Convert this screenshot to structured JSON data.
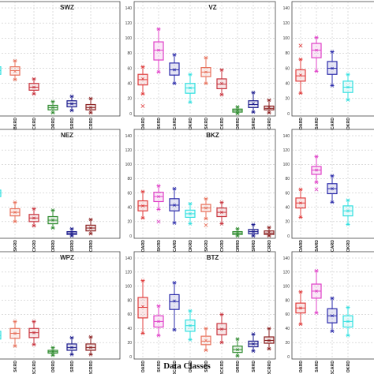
{
  "chart_data": {
    "type": "box",
    "xlabel": "Data Classes",
    "panels": [
      {
        "title": "SWZ",
        "ylim": [
          0,
          140
        ],
        "yticks": [],
        "boxes": [
          {
            "category": "",
            "color": "#33e0e0",
            "q1": 52,
            "median": 57,
            "q3": 62,
            "whisker_low": 46,
            "whisker_high": 67,
            "mean": 56
          },
          {
            "category": "BKRD",
            "color": "#e8705a",
            "q1": 51,
            "median": 57,
            "q3": 62,
            "whisker_low": 45,
            "whisker_high": 70,
            "mean": 56
          },
          {
            "category": "BCKRD",
            "color": "#c8323c",
            "q1": 31,
            "median": 35,
            "q3": 40,
            "whisker_low": 26,
            "whisker_high": 46,
            "mean": 35
          },
          {
            "category": "ORRD",
            "color": "#2e8b2e",
            "q1": 5,
            "median": 8,
            "q3": 11,
            "whisker_low": 1,
            "whisker_high": 16,
            "mean": 8
          },
          {
            "category": "SRRD",
            "color": "#1a1a8c",
            "q1": 9,
            "median": 13,
            "q3": 17,
            "whisker_low": 4,
            "whisker_high": 23,
            "mean": 13
          },
          {
            "category": "BCRRD",
            "color": "#8b2020",
            "q1": 5,
            "median": 8,
            "q3": 12,
            "whisker_low": 1,
            "whisker_high": 20,
            "mean": 8
          }
        ]
      },
      {
        "title": "VZ",
        "ylim": [
          0,
          140
        ],
        "yticks": [
          "0",
          "20",
          "40",
          "60",
          "80",
          "100",
          "120",
          "140"
        ],
        "boxes": [
          {
            "category": "OARD",
            "color": "#e03c3c",
            "q1": 38,
            "median": 45,
            "q3": 52,
            "whisker_low": 26,
            "whisker_high": 62,
            "mean": 46,
            "outliers": [
              10
            ]
          },
          {
            "category": "SKRD",
            "color": "#e040c8",
            "q1": 71,
            "median": 84,
            "q3": 95,
            "whisker_low": 55,
            "whisker_high": 112,
            "mean": 84
          },
          {
            "category": "BCARD",
            "color": "#2a2aaa",
            "q1": 51,
            "median": 58,
            "q3": 67,
            "whisker_low": 40,
            "whisker_high": 78,
            "mean": 58
          },
          {
            "category": "OKRD",
            "color": "#33e0e0",
            "q1": 27,
            "median": 34,
            "q3": 40,
            "whisker_low": 15,
            "whisker_high": 52,
            "mean": 34
          },
          {
            "category": "SKRD",
            "color": "#e8705a",
            "q1": 49,
            "median": 55,
            "q3": 61,
            "whisker_low": 40,
            "whisker_high": 74,
            "mean": 55
          },
          {
            "category": "BCKRD",
            "color": "#c8323c",
            "q1": 33,
            "median": 39,
            "q3": 46,
            "whisker_low": 25,
            "whisker_high": 58,
            "mean": 40
          },
          {
            "category": "ORRD",
            "color": "#2e8b2e",
            "q1": 2,
            "median": 4,
            "q3": 6,
            "whisker_low": 0,
            "whisker_high": 9,
            "mean": 4
          },
          {
            "category": "SRRD",
            "color": "#1a1a8c",
            "q1": 8,
            "median": 12,
            "q3": 17,
            "whisker_low": 2,
            "whisker_high": 28,
            "mean": 13
          },
          {
            "category": "BCRRD",
            "color": "#8b2020",
            "q1": 5,
            "median": 7,
            "q3": 10,
            "whisker_low": 1,
            "whisker_high": 18,
            "mean": 8
          }
        ]
      },
      {
        "title": "",
        "ylim": [
          0,
          140
        ],
        "yticks": [
          "0",
          "20",
          "40",
          "60",
          "80",
          "100",
          "120",
          "140"
        ],
        "boxes": [
          {
            "category": "OARD",
            "color": "#e03c3c",
            "q1": 43,
            "median": 50,
            "q3": 58,
            "whisker_low": 27,
            "whisker_high": 72,
            "mean": 51,
            "outliers": [
              90
            ]
          },
          {
            "category": "SARD",
            "color": "#e040c8",
            "q1": 74,
            "median": 84,
            "q3": 93,
            "whisker_low": 56,
            "whisker_high": 101,
            "mean": 84
          },
          {
            "category": "BCARD",
            "color": "#2a2aaa",
            "q1": 52,
            "median": 60,
            "q3": 69,
            "whisker_low": 37,
            "whisker_high": 82,
            "mean": 60
          },
          {
            "category": "OKRD",
            "color": "#33e0e0",
            "q1": 28,
            "median": 35,
            "q3": 43,
            "whisker_low": 18,
            "whisker_high": 52,
            "mean": 35
          }
        ]
      },
      {
        "title": "NEZ",
        "ylim": [
          0,
          140
        ],
        "yticks": [],
        "boxes": [
          {
            "category": "",
            "color": "#33e0e0",
            "q1": 55,
            "median": 60,
            "q3": 64,
            "whisker_low": 48,
            "whisker_high": 68,
            "mean": 60
          },
          {
            "category": "SKRD",
            "color": "#e8705a",
            "q1": 28,
            "median": 33,
            "q3": 38,
            "whisker_low": 20,
            "whisker_high": 47,
            "mean": 33
          },
          {
            "category": "BCKRD",
            "color": "#c8323c",
            "q1": 20,
            "median": 25,
            "q3": 30,
            "whisker_low": 14,
            "whisker_high": 38,
            "mean": 25
          },
          {
            "category": "ORRD",
            "color": "#2e8b2e",
            "q1": 17,
            "median": 22,
            "q3": 27,
            "whisker_low": 11,
            "whisker_high": 36,
            "mean": 22
          },
          {
            "category": "SRRD",
            "color": "#1a1a8c",
            "q1": 2,
            "median": 4,
            "q3": 6,
            "whisker_low": 0,
            "whisker_high": 10,
            "mean": 4
          },
          {
            "category": "BCRRD",
            "color": "#8b2020",
            "q1": 7,
            "median": 11,
            "q3": 15,
            "whisker_low": 3,
            "whisker_high": 23,
            "mean": 11
          }
        ]
      },
      {
        "title": "BKZ",
        "ylim": [
          0,
          140
        ],
        "yticks": [
          "0",
          "20",
          "40",
          "60",
          "80",
          "100",
          "120",
          "140"
        ],
        "boxes": [
          {
            "category": "OARD",
            "color": "#e03c3c",
            "q1": 35,
            "median": 42,
            "q3": 49,
            "whisker_low": 25,
            "whisker_high": 62,
            "mean": 42
          },
          {
            "category": "SKRD",
            "color": "#e040c8",
            "q1": 48,
            "median": 55,
            "q3": 61,
            "whisker_low": 37,
            "whisker_high": 70,
            "mean": 55,
            "outliers": [
              20
            ]
          },
          {
            "category": "BCARD",
            "color": "#2a2aaa",
            "q1": 35,
            "median": 43,
            "q3": 52,
            "whisker_low": 18,
            "whisker_high": 66,
            "mean": 43
          },
          {
            "category": "OKRD",
            "color": "#33e0e0",
            "q1": 26,
            "median": 31,
            "q3": 36,
            "whisker_low": 17,
            "whisker_high": 45,
            "mean": 31
          },
          {
            "category": "SKRD",
            "color": "#e8705a",
            "q1": 34,
            "median": 39,
            "q3": 44,
            "whisker_low": 24,
            "whisker_high": 52,
            "mean": 39,
            "outliers": [
              15
            ]
          },
          {
            "category": "BCKRD",
            "color": "#c8323c",
            "q1": 27,
            "median": 33,
            "q3": 39,
            "whisker_low": 17,
            "whisker_high": 47,
            "mean": 33
          },
          {
            "category": "ORRD",
            "color": "#2e8b2e",
            "q1": 2,
            "median": 4,
            "q3": 6,
            "whisker_low": 0,
            "whisker_high": 10,
            "mean": 4
          },
          {
            "category": "SRRD",
            "color": "#1a1a8c",
            "q1": 3,
            "median": 6,
            "q3": 9,
            "whisker_low": 0,
            "whisker_high": 16,
            "mean": 6
          },
          {
            "category": "BCRRD",
            "color": "#8b2020",
            "q1": 2,
            "median": 4,
            "q3": 7,
            "whisker_low": 0,
            "whisker_high": 12,
            "mean": 5
          }
        ]
      },
      {
        "title": "",
        "ylim": [
          0,
          140
        ],
        "yticks": [
          "0",
          "20",
          "40",
          "60",
          "80",
          "100",
          "120",
          "140"
        ],
        "boxes": [
          {
            "category": "OARD",
            "color": "#e03c3c",
            "q1": 39,
            "median": 46,
            "q3": 53,
            "whisker_low": 26,
            "whisker_high": 65,
            "mean": 46
          },
          {
            "category": "SARD",
            "color": "#e040c8",
            "q1": 86,
            "median": 92,
            "q3": 97,
            "whisker_low": 75,
            "whisker_high": 111,
            "mean": 92,
            "outliers": [
              65
            ]
          },
          {
            "category": "BCARD",
            "color": "#2a2aaa",
            "q1": 59,
            "median": 66,
            "q3": 73,
            "whisker_low": 47,
            "whisker_high": 84,
            "mean": 66
          },
          {
            "category": "OKRD",
            "color": "#33e0e0",
            "q1": 28,
            "median": 35,
            "q3": 42,
            "whisker_low": 16,
            "whisker_high": 50,
            "mean": 35
          }
        ]
      },
      {
        "title": "WPZ",
        "ylim": [
          0,
          140
        ],
        "yticks": [],
        "boxes": [
          {
            "category": "",
            "color": "#33e0e0",
            "q1": 25,
            "median": 30,
            "q3": 36,
            "whisker_low": 19,
            "whisker_high": 42,
            "mean": 30
          },
          {
            "category": "SKRD",
            "color": "#e8705a",
            "q1": 26,
            "median": 33,
            "q3": 40,
            "whisker_low": 15,
            "whisker_high": 50,
            "mean": 33
          },
          {
            "category": "BCKRD",
            "color": "#c8323c",
            "q1": 27,
            "median": 34,
            "q3": 40,
            "whisker_low": 17,
            "whisker_high": 50,
            "mean": 34
          },
          {
            "category": "ORRD",
            "color": "#2e8b2e",
            "q1": 5,
            "median": 7,
            "q3": 9,
            "whisker_low": 2,
            "whisker_high": 13,
            "mean": 7
          },
          {
            "category": "SRRD",
            "color": "#1a1a8c",
            "q1": 9,
            "median": 13,
            "q3": 18,
            "whisker_low": 3,
            "whisker_high": 27,
            "mean": 13
          },
          {
            "category": "BCRRD",
            "color": "#8b2020",
            "q1": 9,
            "median": 13,
            "q3": 18,
            "whisker_low": 3,
            "whisker_high": 28,
            "mean": 13
          }
        ]
      },
      {
        "title": "BTZ",
        "ylim": [
          0,
          140
        ],
        "yticks": [
          "0",
          "20",
          "40",
          "60",
          "80",
          "100",
          "120",
          "140"
        ],
        "boxes": [
          {
            "category": "OARD",
            "color": "#e03c3c",
            "q1": 55,
            "median": 70,
            "q3": 84,
            "whisker_low": 33,
            "whisker_high": 108,
            "mean": 71
          },
          {
            "category": "SKRD",
            "color": "#e040c8",
            "q1": 42,
            "median": 50,
            "q3": 58,
            "whisker_low": 30,
            "whisker_high": 72,
            "mean": 50
          },
          {
            "category": "BCARD",
            "color": "#2a2aaa",
            "q1": 67,
            "median": 78,
            "q3": 88,
            "whisker_low": 38,
            "whisker_high": 105,
            "mean": 79
          },
          {
            "category": "OKRD",
            "color": "#33e0e0",
            "q1": 36,
            "median": 44,
            "q3": 52,
            "whisker_low": 24,
            "whisker_high": 65,
            "mean": 44
          },
          {
            "category": "SKRD",
            "color": "#e8705a",
            "q1": 17,
            "median": 22,
            "q3": 29,
            "whisker_low": 9,
            "whisker_high": 40,
            "mean": 23
          },
          {
            "category": "BCKRD",
            "color": "#c8323c",
            "q1": 31,
            "median": 39,
            "q3": 47,
            "whisker_low": 20,
            "whisker_high": 60,
            "mean": 39
          },
          {
            "category": "ORRD",
            "color": "#2e8b2e",
            "q1": 6,
            "median": 10,
            "q3": 15,
            "whisker_low": 1,
            "whisker_high": 25,
            "mean": 10
          },
          {
            "category": "SRRD",
            "color": "#1a1a8c",
            "q1": 14,
            "median": 18,
            "q3": 22,
            "whisker_low": 8,
            "whisker_high": 32,
            "mean": 18
          },
          {
            "category": "BCRRD",
            "color": "#8b2020",
            "q1": 19,
            "median": 23,
            "q3": 28,
            "whisker_low": 11,
            "whisker_high": 40,
            "mean": 23
          }
        ]
      },
      {
        "title": "",
        "ylim": [
          0,
          140
        ],
        "yticks": [
          "0",
          "20",
          "40",
          "60",
          "80",
          "100",
          "120",
          "140"
        ],
        "boxes": [
          {
            "category": "OARD",
            "color": "#e03c3c",
            "q1": 62,
            "median": 69,
            "q3": 76,
            "whisker_low": 46,
            "whisker_high": 92,
            "mean": 69
          },
          {
            "category": "SARD",
            "color": "#e040c8",
            "q1": 83,
            "median": 93,
            "q3": 103,
            "whisker_low": 62,
            "whisker_high": 122,
            "mean": 93
          },
          {
            "category": "BCARD",
            "color": "#2a2aaa",
            "q1": 48,
            "median": 58,
            "q3": 68,
            "whisker_low": 36,
            "whisker_high": 83,
            "mean": 58
          },
          {
            "category": "OKRD",
            "color": "#33e0e0",
            "q1": 42,
            "median": 50,
            "q3": 58,
            "whisker_low": 30,
            "whisker_high": 70,
            "mean": 50
          }
        ]
      }
    ]
  }
}
